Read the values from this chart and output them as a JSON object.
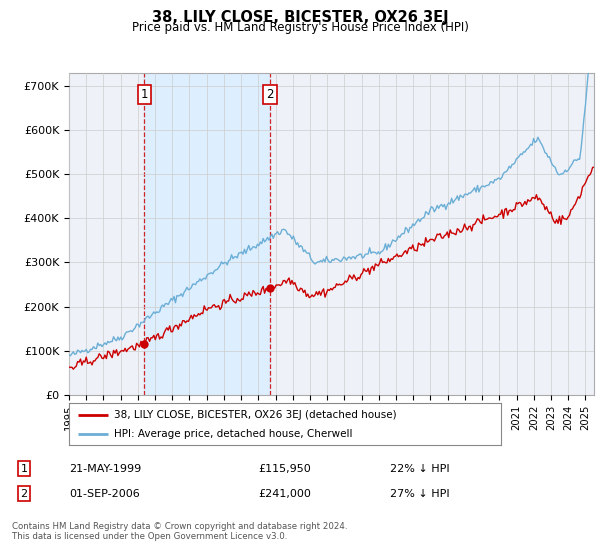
{
  "title": "38, LILY CLOSE, BICESTER, OX26 3EJ",
  "subtitle": "Price paid vs. HM Land Registry's House Price Index (HPI)",
  "ylabel_ticks": [
    "£0",
    "£100K",
    "£200K",
    "£300K",
    "£400K",
    "£500K",
    "£600K",
    "£700K"
  ],
  "ytick_values": [
    0,
    100000,
    200000,
    300000,
    400000,
    500000,
    600000,
    700000
  ],
  "ylim": [
    0,
    730000
  ],
  "xlim_start": 1995.0,
  "xlim_end": 2025.5,
  "legend_line1": "38, LILY CLOSE, BICESTER, OX26 3EJ (detached house)",
  "legend_line2": "HPI: Average price, detached house, Cherwell",
  "sale1_date": 1999.38,
  "sale1_price": 115950,
  "sale2_date": 2006.67,
  "sale2_price": 241000,
  "table_row1": [
    "1",
    "21-MAY-1999",
    "£115,950",
    "22% ↓ HPI"
  ],
  "table_row2": [
    "2",
    "01-SEP-2006",
    "£241,000",
    "27% ↓ HPI"
  ],
  "footnote": "Contains HM Land Registry data © Crown copyright and database right 2024.\nThis data is licensed under the Open Government Licence v3.0.",
  "hpi_color": "#6baed6",
  "price_color": "#cc0000",
  "vline_color": "#cc0000",
  "shade_color": "#ddeeff",
  "background_color": "#ffffff",
  "plot_bg_color": "#eef2f8"
}
